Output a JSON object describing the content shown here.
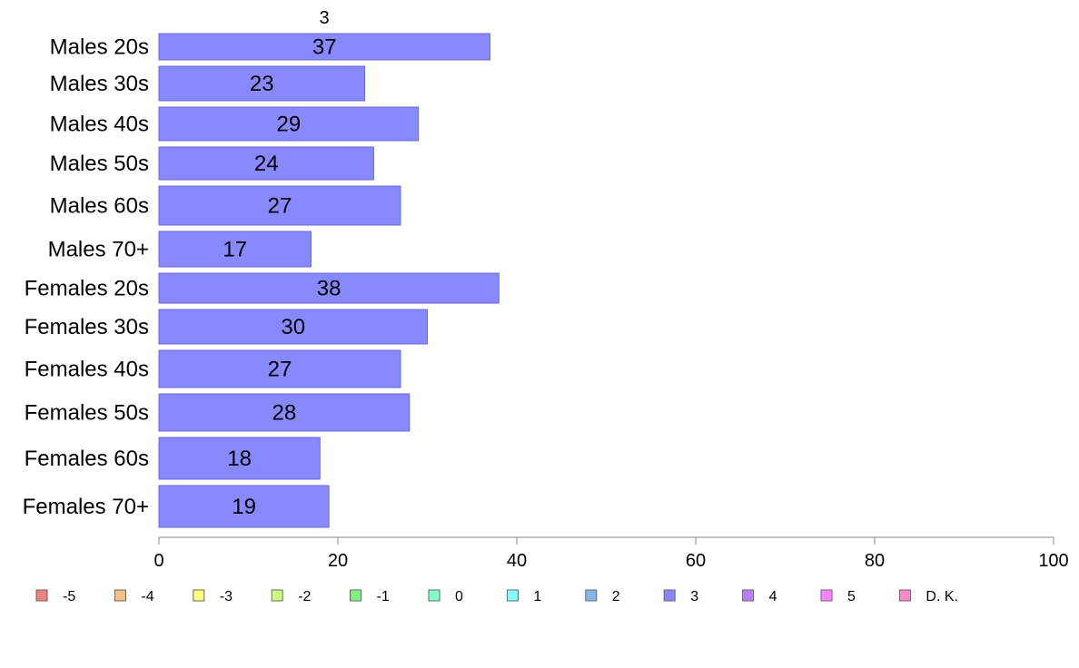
{
  "chart_data": {
    "type": "bar",
    "orientation": "horizontal",
    "stacked": true,
    "column_label": "3",
    "categories": [
      "Males 20s",
      "Males 30s",
      "Males 40s",
      "Males 50s",
      "Males 60s",
      "Males 70+",
      "Females 20s",
      "Females 30s",
      "Females 40s",
      "Females 50s",
      "Females 60s",
      "Females 70+"
    ],
    "series": [
      {
        "name": "3",
        "color": "#8888ff",
        "values": [
          37,
          23,
          29,
          24,
          27,
          17,
          38,
          30,
          27,
          28,
          18,
          19
        ]
      }
    ],
    "xlim": [
      0,
      100
    ],
    "xticks": [
      0,
      20,
      40,
      60,
      80,
      100
    ],
    "grid": false,
    "legend": {
      "placement": "bottom",
      "items": [
        {
          "label": "-5",
          "color": "#f08080"
        },
        {
          "label": "-4",
          "color": "#f8c080"
        },
        {
          "label": "-3",
          "color": "#ffff80"
        },
        {
          "label": "-2",
          "color": "#c8ff80"
        },
        {
          "label": "-1",
          "color": "#80f080"
        },
        {
          "label": "0",
          "color": "#80ffc8"
        },
        {
          "label": "1",
          "color": "#80ffff"
        },
        {
          "label": "2",
          "color": "#80b8f0"
        },
        {
          "label": "3",
          "color": "#8888ff"
        },
        {
          "label": "4",
          "color": "#b880ff"
        },
        {
          "label": "5",
          "color": "#ff80ff"
        },
        {
          "label": "D. K.",
          "color": "#ff88cc"
        }
      ]
    }
  }
}
